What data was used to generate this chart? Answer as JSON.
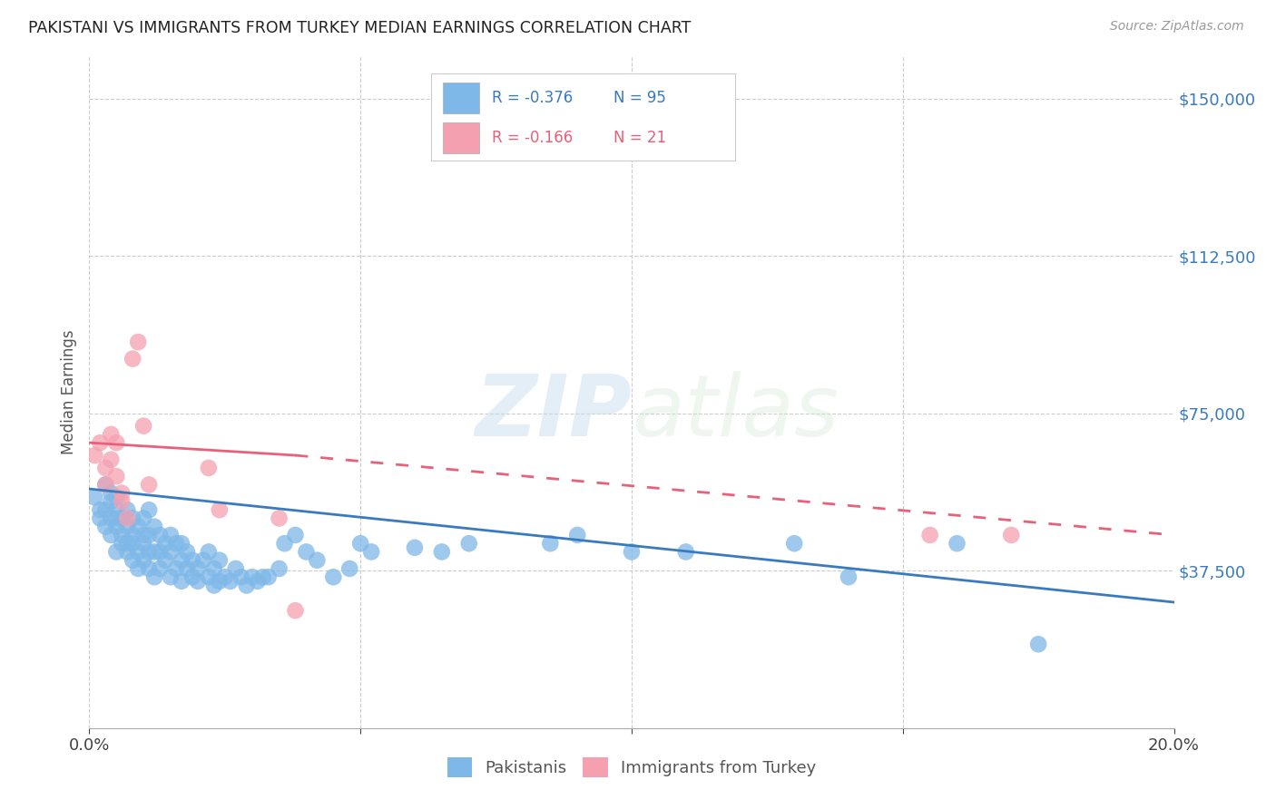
{
  "title": "PAKISTANI VS IMMIGRANTS FROM TURKEY MEDIAN EARNINGS CORRELATION CHART",
  "source": "Source: ZipAtlas.com",
  "ylabel": "Median Earnings",
  "xlim": [
    0.0,
    0.2
  ],
  "ylim": [
    0,
    160000
  ],
  "yticks": [
    0,
    37500,
    75000,
    112500,
    150000
  ],
  "ytick_labels": [
    "",
    "$37,500",
    "$75,000",
    "$112,500",
    "$150,000"
  ],
  "xticks": [
    0.0,
    0.05,
    0.1,
    0.15,
    0.2
  ],
  "xtick_labels": [
    "0.0%",
    "",
    "",
    "",
    "20.0%"
  ],
  "blue_color": "#7eb8e8",
  "pink_color": "#f5a0b0",
  "blue_line_color": "#3a7abf",
  "pink_line_color": "#e8607a",
  "watermark_zip": "ZIP",
  "watermark_atlas": "atlas",
  "legend_R_blue": "-0.376",
  "legend_N_blue": "95",
  "legend_R_pink": "-0.166",
  "legend_N_pink": "21",
  "legend_label_blue": "Pakistanis",
  "legend_label_pink": "Immigrants from Turkey",
  "blue_x": [
    0.001,
    0.002,
    0.002,
    0.003,
    0.003,
    0.003,
    0.004,
    0.004,
    0.004,
    0.004,
    0.005,
    0.005,
    0.005,
    0.005,
    0.005,
    0.006,
    0.006,
    0.006,
    0.007,
    0.007,
    0.007,
    0.007,
    0.008,
    0.008,
    0.008,
    0.008,
    0.009,
    0.009,
    0.009,
    0.01,
    0.01,
    0.01,
    0.01,
    0.011,
    0.011,
    0.011,
    0.011,
    0.012,
    0.012,
    0.012,
    0.013,
    0.013,
    0.013,
    0.014,
    0.014,
    0.015,
    0.015,
    0.015,
    0.016,
    0.016,
    0.017,
    0.017,
    0.017,
    0.018,
    0.018,
    0.019,
    0.019,
    0.02,
    0.02,
    0.021,
    0.022,
    0.022,
    0.023,
    0.023,
    0.024,
    0.024,
    0.025,
    0.026,
    0.027,
    0.028,
    0.029,
    0.03,
    0.031,
    0.032,
    0.033,
    0.035,
    0.036,
    0.038,
    0.04,
    0.042,
    0.045,
    0.048,
    0.05,
    0.052,
    0.06,
    0.065,
    0.07,
    0.085,
    0.09,
    0.1,
    0.11,
    0.13,
    0.14,
    0.16,
    0.175
  ],
  "blue_y": [
    55000,
    52000,
    50000,
    48000,
    52000,
    58000,
    46000,
    50000,
    54000,
    56000,
    42000,
    48000,
    50000,
    52000,
    55000,
    44000,
    46000,
    50000,
    42000,
    44000,
    48000,
    52000,
    40000,
    44000,
    46000,
    50000,
    38000,
    42000,
    48000,
    40000,
    44000,
    46000,
    50000,
    38000,
    42000,
    46000,
    52000,
    36000,
    42000,
    48000,
    38000,
    42000,
    46000,
    40000,
    44000,
    36000,
    42000,
    46000,
    38000,
    44000,
    35000,
    40000,
    44000,
    38000,
    42000,
    36000,
    40000,
    35000,
    38000,
    40000,
    36000,
    42000,
    34000,
    38000,
    35000,
    40000,
    36000,
    35000,
    38000,
    36000,
    34000,
    36000,
    35000,
    36000,
    36000,
    38000,
    44000,
    46000,
    42000,
    40000,
    36000,
    38000,
    44000,
    42000,
    43000,
    42000,
    44000,
    44000,
    46000,
    42000,
    42000,
    44000,
    36000,
    44000,
    20000
  ],
  "pink_x": [
    0.001,
    0.002,
    0.003,
    0.003,
    0.004,
    0.004,
    0.005,
    0.005,
    0.006,
    0.006,
    0.007,
    0.008,
    0.009,
    0.01,
    0.011,
    0.022,
    0.024,
    0.035,
    0.038,
    0.155,
    0.17
  ],
  "pink_y": [
    65000,
    68000,
    62000,
    58000,
    70000,
    64000,
    68000,
    60000,
    56000,
    54000,
    50000,
    88000,
    92000,
    72000,
    58000,
    62000,
    52000,
    50000,
    28000,
    46000,
    46000
  ]
}
